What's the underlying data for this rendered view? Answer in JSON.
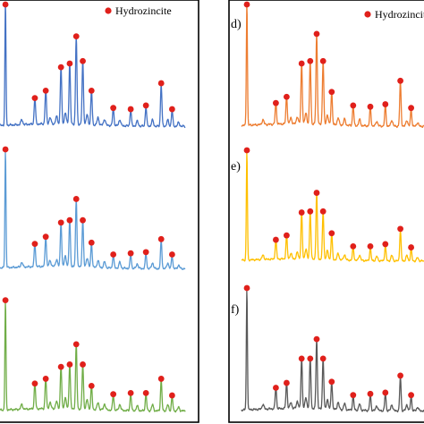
{
  "chart_data": [
    {
      "type": "line",
      "panel": "a",
      "label": "",
      "color": "#4472C4",
      "frame": "left",
      "legend": {
        "marker_color": "#E0201B",
        "text": "Hydrozincite",
        "placement": "top-right"
      },
      "peaks": [
        [
          7.5,
          1.0
        ],
        [
          21,
          0.22
        ],
        [
          26,
          0.28
        ],
        [
          33,
          0.47
        ],
        [
          37,
          0.5
        ],
        [
          40,
          0.72
        ],
        [
          43,
          0.52
        ],
        [
          47,
          0.28
        ],
        [
          57,
          0.14
        ],
        [
          65,
          0.13
        ],
        [
          72,
          0.16
        ],
        [
          79,
          0.34
        ],
        [
          84,
          0.13
        ]
      ]
    },
    {
      "type": "line",
      "panel": "b",
      "label": "",
      "color": "#5B9BD5",
      "frame": "left",
      "peaks": [
        [
          7.5,
          1.0
        ],
        [
          21,
          0.2
        ],
        [
          26,
          0.26
        ],
        [
          33,
          0.38
        ],
        [
          37,
          0.4
        ],
        [
          40,
          0.58
        ],
        [
          43,
          0.4
        ],
        [
          47,
          0.21
        ],
        [
          57,
          0.11
        ],
        [
          65,
          0.12
        ],
        [
          72,
          0.13
        ],
        [
          79,
          0.24
        ],
        [
          84,
          0.11
        ]
      ]
    },
    {
      "type": "line",
      "panel": "c",
      "label": "",
      "color": "#70AD47",
      "frame": "left",
      "peaks": [
        [
          7.5,
          0.92
        ],
        [
          21,
          0.22
        ],
        [
          26,
          0.26
        ],
        [
          33,
          0.36
        ],
        [
          37,
          0.38
        ],
        [
          40,
          0.55
        ],
        [
          43,
          0.38
        ],
        [
          47,
          0.2
        ],
        [
          57,
          0.13
        ],
        [
          65,
          0.14
        ],
        [
          72,
          0.14
        ],
        [
          79,
          0.26
        ],
        [
          84,
          0.12
        ]
      ]
    },
    {
      "type": "line",
      "panel": "d",
      "label": "d)",
      "color": "#ED7D31",
      "frame": "right",
      "legend": {
        "marker_color": "#E0201B",
        "text": "Hydrozincite",
        "placement": "top-right"
      },
      "peaks": [
        [
          7.5,
          1.0
        ],
        [
          21,
          0.18
        ],
        [
          26,
          0.23
        ],
        [
          33,
          0.5
        ],
        [
          37,
          0.52
        ],
        [
          40,
          0.74
        ],
        [
          43,
          0.52
        ],
        [
          47,
          0.27
        ],
        [
          57,
          0.16
        ],
        [
          65,
          0.15
        ],
        [
          72,
          0.17
        ],
        [
          79,
          0.36
        ],
        [
          84,
          0.14
        ]
      ]
    },
    {
      "type": "line",
      "panel": "e",
      "label": "e)",
      "color": "#FFC000",
      "frame": "right",
      "peaks": [
        [
          7.5,
          1.0
        ],
        [
          21,
          0.18
        ],
        [
          26,
          0.22
        ],
        [
          33,
          0.43
        ],
        [
          37,
          0.44
        ],
        [
          40,
          0.61
        ],
        [
          43,
          0.44
        ],
        [
          47,
          0.24
        ],
        [
          57,
          0.12
        ],
        [
          65,
          0.12
        ],
        [
          72,
          0.14
        ],
        [
          79,
          0.28
        ],
        [
          84,
          0.11
        ]
      ]
    },
    {
      "type": "line",
      "panel": "f",
      "label": "f)",
      "color": "#595959",
      "frame": "right",
      "peaks": [
        [
          7.5,
          1.0
        ],
        [
          21,
          0.18
        ],
        [
          26,
          0.22
        ],
        [
          33,
          0.42
        ],
        [
          37,
          0.42
        ],
        [
          40,
          0.58
        ],
        [
          43,
          0.42
        ],
        [
          47,
          0.23
        ],
        [
          57,
          0.12
        ],
        [
          65,
          0.13
        ],
        [
          72,
          0.14
        ],
        [
          79,
          0.28
        ],
        [
          84,
          0.12
        ]
      ]
    }
  ]
}
